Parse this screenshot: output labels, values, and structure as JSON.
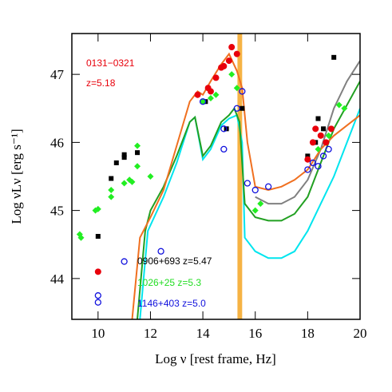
{
  "chart_data": {
    "type": "scatter",
    "xlabel": "Log ν  [rest frame, Hz]",
    "ylabel": "Log νLν  [erg s⁻¹]",
    "xlim": [
      9,
      20
    ],
    "ylim": [
      43.4,
      47.6
    ],
    "xticks": [
      10,
      12,
      14,
      16,
      18,
      20
    ],
    "yticks": [
      44,
      45,
      46,
      47
    ],
    "vspan": {
      "x": [
        15.32,
        15.5
      ],
      "color": "#f5a623"
    },
    "annotations": [
      {
        "text": "0131−0321",
        "color": "#e8000b"
      },
      {
        "text": "z=5.18",
        "color": "#e8000b"
      },
      {
        "text": "0906+693 z=5.47",
        "color": "#000000"
      },
      {
        "text": "1026+25  z=5.3",
        "color": "#22dd22"
      },
      {
        "text": "1146+403 z=5.0",
        "color": "#1010dd"
      }
    ],
    "series": [
      {
        "color": "#000000",
        "marker": "square",
        "x": [
          10,
          10.5,
          10.7,
          11,
          11,
          11.5,
          14.1,
          14.9,
          15.5,
          18,
          18.3,
          18.4,
          18.6,
          19
        ],
        "values": [
          44.62,
          45.47,
          45.7,
          45.78,
          45.82,
          45.85,
          46.6,
          46.2,
          46.5,
          45.8,
          46.0,
          46.35,
          46.2,
          47.25
        ]
      },
      {
        "color": "#22ee22",
        "marker": "diamond",
        "x": [
          9.3,
          9.35,
          9.9,
          10,
          10.5,
          10.5,
          11,
          11.2,
          11.3,
          11.5,
          11.5,
          12,
          14.0,
          14.3,
          14.5,
          15.1,
          15.3,
          16,
          16.2,
          18.4,
          18.8,
          19.2,
          19.4
        ],
        "values": [
          44.65,
          44.6,
          45.0,
          45.02,
          45.2,
          45.3,
          45.4,
          45.45,
          45.42,
          45.65,
          45.95,
          45.5,
          46.6,
          46.65,
          46.7,
          47.0,
          46.8,
          45.0,
          45.1,
          45.9,
          46.1,
          46.55,
          46.5
        ]
      },
      {
        "color": "#e8000b",
        "marker": "circle",
        "x": [
          10,
          13.8,
          14.2,
          14.3,
          14.5,
          14.7,
          14.8,
          15,
          15.1,
          15.3,
          18,
          18.2,
          18.3,
          18.5,
          18.7,
          18.9
        ],
        "values": [
          44.1,
          46.7,
          46.8,
          46.75,
          46.95,
          47.1,
          47.12,
          47.2,
          47.4,
          47.3,
          45.75,
          46.0,
          46.2,
          46.1,
          46.0,
          46.2
        ]
      },
      {
        "color": "#1010dd",
        "marker": "open-circle",
        "x": [
          10,
          10,
          11,
          12.4,
          14,
          14.8,
          14.8,
          15.3,
          15.5,
          15.7,
          16,
          16.5,
          18,
          18.2,
          18.4,
          18.6,
          18.8
        ],
        "values": [
          43.75,
          43.65,
          44.25,
          44.4,
          46.6,
          46.2,
          45.9,
          46.5,
          46.75,
          45.4,
          45.3,
          45.35,
          45.6,
          45.7,
          45.65,
          45.8,
          45.9
        ]
      }
    ],
    "lines": [
      {
        "color": "#808080",
        "x": [
          16,
          16.5,
          17,
          17.5,
          18,
          18.5,
          19,
          19.5,
          20
        ],
        "values": [
          45.2,
          45.1,
          45.1,
          45.2,
          45.45,
          45.9,
          46.5,
          46.9,
          47.2
        ]
      },
      {
        "color": "#00e5ee",
        "x": [
          11.6,
          11.9,
          12.2,
          12.5,
          13,
          13.5,
          13.7,
          14,
          14.3,
          14.7,
          15,
          15.3,
          15.5,
          15.6,
          16,
          16.5,
          17,
          17.5,
          18,
          18.5,
          19,
          19.5,
          20
        ],
        "values": [
          43.4,
          44.7,
          44.95,
          45.2,
          45.7,
          46.3,
          46.37,
          45.75,
          45.9,
          46.25,
          46.35,
          46.4,
          46.0,
          44.6,
          44.4,
          44.3,
          44.3,
          44.4,
          44.7,
          45.1,
          45.5,
          46.0,
          46.5
        ]
      },
      {
        "color": "#22a022",
        "x": [
          11.5,
          11.8,
          12,
          12.5,
          13,
          13.5,
          13.7,
          14,
          14.3,
          14.7,
          15,
          15.2,
          15.4,
          15.6,
          16,
          16.5,
          17,
          17.5,
          18,
          18.5,
          19,
          19.5,
          20
        ],
        "values": [
          43.4,
          44.7,
          45.0,
          45.35,
          45.8,
          46.3,
          46.37,
          45.8,
          45.95,
          46.3,
          46.4,
          46.5,
          46.3,
          45.1,
          44.9,
          44.85,
          44.85,
          44.95,
          45.2,
          45.7,
          46.2,
          46.55,
          46.9
        ]
      },
      {
        "color": "#f07020",
        "x": [
          11.3,
          11.6,
          12,
          12.5,
          13,
          13.5,
          13.8,
          14,
          14.3,
          14.7,
          15.0,
          15.3,
          15.5,
          15.7,
          16,
          16.5,
          17,
          17.5,
          18,
          18.5,
          19,
          19.5,
          20
        ],
        "values": [
          43.4,
          44.6,
          44.9,
          45.3,
          45.95,
          46.6,
          46.75,
          46.7,
          46.9,
          47.15,
          47.3,
          47.05,
          46.8,
          46.0,
          45.35,
          45.3,
          45.35,
          45.45,
          45.6,
          45.9,
          46.1,
          46.25,
          46.4
        ]
      }
    ]
  }
}
